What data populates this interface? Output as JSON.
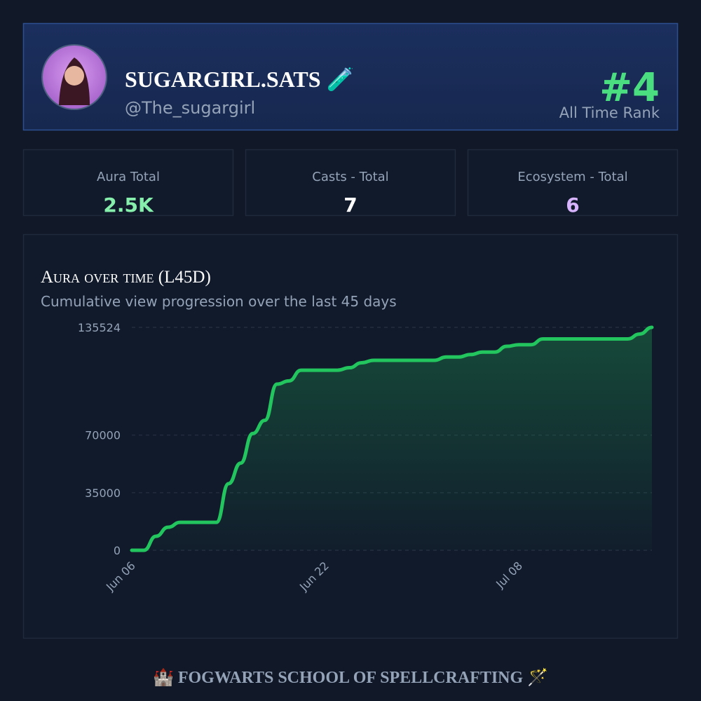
{
  "header": {
    "name": "SUGARGIRL.SATS 🧪",
    "handle": "@The_sugargirl",
    "rank": "#4",
    "rank_label": "All Time Rank"
  },
  "stats": [
    {
      "label": "Aura Total",
      "value": "2.5K",
      "color": "#86efac"
    },
    {
      "label": "Casts - Total",
      "value": 7,
      "color": "#ffffff"
    },
    {
      "label": "Ecosystem - Total",
      "value": 6,
      "color": "#d8b4fe"
    }
  ],
  "chart_data": {
    "type": "line",
    "title": "Aura over time (L45D)",
    "subtitle": "Cumulative view progression over the last 45 days",
    "categories": [
      "Jun 06",
      null,
      null,
      null,
      null,
      null,
      null,
      null,
      null,
      null,
      null,
      null,
      null,
      null,
      null,
      null,
      "Jun 22",
      null,
      null,
      null,
      null,
      null,
      null,
      null,
      null,
      null,
      null,
      null,
      null,
      null,
      null,
      null,
      "Jul 08",
      null,
      null,
      null,
      null,
      null,
      null,
      null,
      null,
      null,
      null,
      null
    ],
    "series": [
      {
        "color": "#22c55e",
        "values": [
          0,
          0,
          8500,
          14000,
          17000,
          17000,
          17000,
          17000,
          40500,
          53000,
          71000,
          79000,
          101000,
          103000,
          109500,
          109500,
          109500,
          109500,
          111000,
          114000,
          115500,
          115500,
          115500,
          115500,
          115500,
          115500,
          117500,
          117500,
          119000,
          120500,
          120500,
          124000,
          125000,
          125000,
          128500,
          128500,
          128500,
          128500,
          128500,
          128500,
          128500,
          128500,
          131500,
          135524
        ]
      }
    ],
    "ylim": [
      0,
      135524
    ],
    "yticks": [
      0,
      35000,
      70000,
      135524
    ],
    "grid": true
  },
  "footer": "🏰 FOGWARTS SCHOOL OF SPELLCRAFTING 🪄"
}
